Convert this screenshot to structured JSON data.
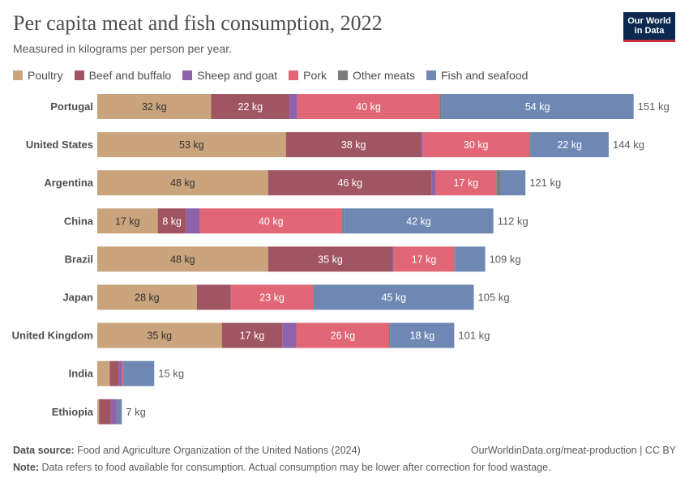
{
  "header": {
    "title": "Per capita meat and fish consumption, 2022",
    "subtitle": "Measured in kilograms per person per year.",
    "logo_line1": "Our World",
    "logo_line2": "in Data"
  },
  "colors": {
    "poultry": "#c9a47c",
    "beef": "#a05563",
    "sheep": "#8d62ac",
    "pork": "#e16676",
    "other": "#7c7c7c",
    "fish": "#6f88b3"
  },
  "chart_data": {
    "type": "bar",
    "orientation": "horizontal",
    "stacked": true,
    "unit": "kg",
    "categories": [
      "Portugal",
      "United States",
      "Argentina",
      "China",
      "Brazil",
      "Japan",
      "United Kingdom",
      "India",
      "Ethiopia"
    ],
    "series": [
      {
        "name": "Poultry",
        "color_key": "poultry",
        "values": [
          32,
          53,
          48,
          17,
          48,
          28,
          35,
          3.5,
          0.5
        ]
      },
      {
        "name": "Beef and buffalo",
        "color_key": "beef",
        "values": [
          22,
          38,
          46,
          8,
          35,
          9.5,
          17,
          2.5,
          3.3
        ]
      },
      {
        "name": "Sheep and goat",
        "color_key": "sheep",
        "values": [
          2.2,
          0.4,
          1.1,
          3.8,
          0.3,
          0.1,
          4,
          1,
          1.6
        ]
      },
      {
        "name": "Pork",
        "color_key": "pork",
        "values": [
          40,
          30,
          17,
          40,
          17,
          23,
          26,
          0.3,
          0
        ]
      },
      {
        "name": "Other meats",
        "color_key": "other",
        "values": [
          0.5,
          0.3,
          1.2,
          0.5,
          0.2,
          0.2,
          0.3,
          0.2,
          0.5
        ]
      },
      {
        "name": "Fish and seafood",
        "color_key": "fish",
        "values": [
          54,
          22,
          7,
          42,
          8.5,
          45,
          18,
          8.5,
          1
        ]
      }
    ],
    "value_labels": [
      [
        "32 kg",
        "22 kg",
        "",
        "40 kg",
        "",
        "54 kg"
      ],
      [
        "53 kg",
        "38 kg",
        "",
        "30 kg",
        "",
        "22 kg"
      ],
      [
        "48 kg",
        "46 kg",
        "",
        "17 kg",
        "",
        ""
      ],
      [
        "17 kg",
        "8 kg",
        "",
        "40 kg",
        "",
        "42 kg"
      ],
      [
        "48 kg",
        "35 kg",
        "",
        "17 kg",
        "",
        ""
      ],
      [
        "28 kg",
        "",
        "",
        "23 kg",
        "",
        "45 kg"
      ],
      [
        "35 kg",
        "17 kg",
        "",
        "26 kg",
        "",
        "18 kg"
      ],
      [
        "",
        "",
        "",
        "",
        "",
        ""
      ],
      [
        "",
        "",
        "",
        "",
        "",
        ""
      ]
    ],
    "totals": [
      "151 kg",
      "144 kg",
      "121 kg",
      "112 kg",
      "109 kg",
      "105 kg",
      "101 kg",
      "15 kg",
      "7 kg"
    ],
    "xlim": [
      0,
      151
    ],
    "legend_position": "top",
    "grid": false
  },
  "footer": {
    "source_label": "Data source:",
    "source_text": "Food and Agriculture Organization of the United Nations (2024)",
    "note_label": "Note:",
    "note_text": "Data refers to food available for consumption. Actual consumption may be lower after correction for food wastage.",
    "url_text": "OurWorldinData.org/meat-production | CC BY"
  }
}
